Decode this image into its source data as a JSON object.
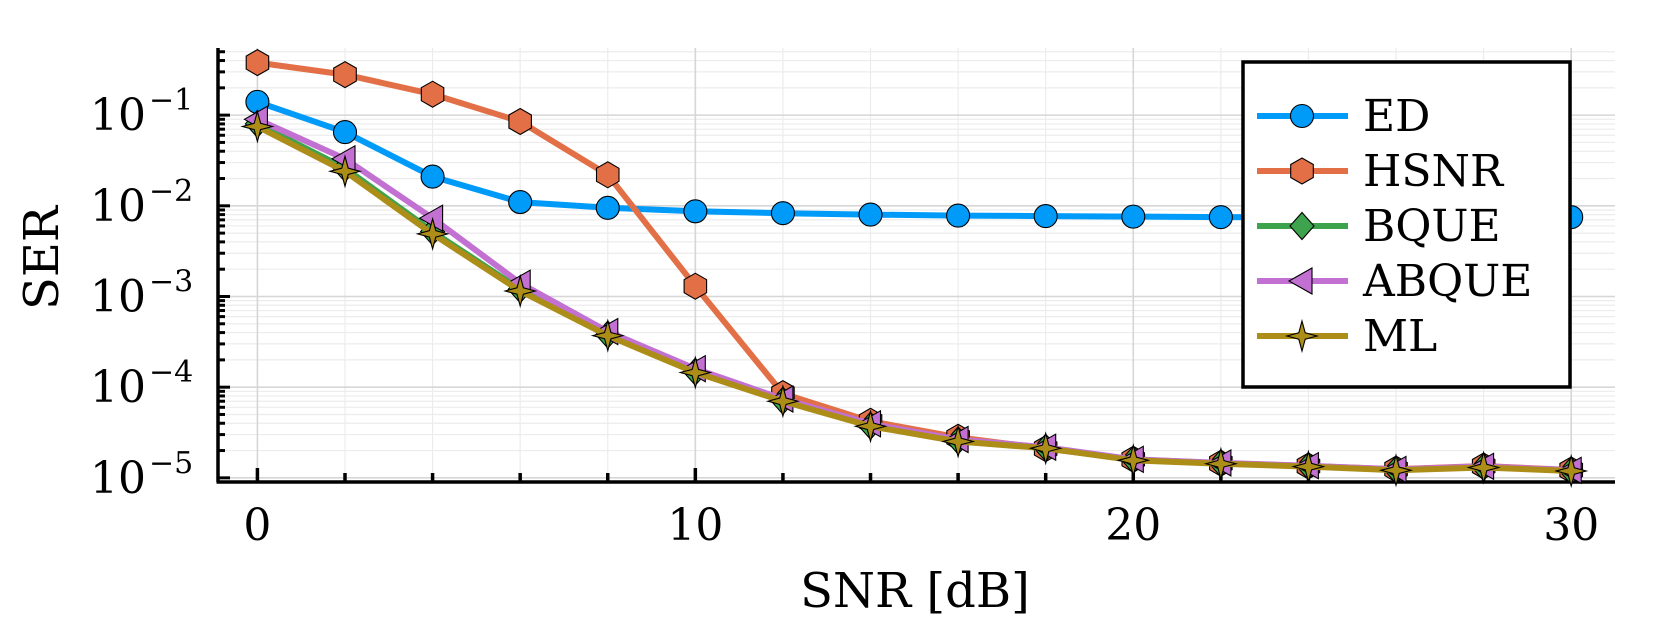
{
  "chart_data": {
    "type": "line",
    "xlabel": "SNR [dB]",
    "ylabel": "SER",
    "xlim": [
      -0.9,
      31.0
    ],
    "ylim": [
      9e-06,
      0.55
    ],
    "yscale": "log",
    "grid": true,
    "legend_position": "top-right",
    "xticks": [
      {
        "value": 0,
        "label": "0"
      },
      {
        "value": 10,
        "label": "10"
      },
      {
        "value": 20,
        "label": "20"
      },
      {
        "value": 30,
        "label": "30"
      }
    ],
    "yticks": [
      {
        "value": 0.1,
        "base": "10",
        "exp": "−1"
      },
      {
        "value": 0.01,
        "base": "10",
        "exp": "−2"
      },
      {
        "value": 0.001,
        "base": "10",
        "exp": "−3"
      },
      {
        "value": 0.0001,
        "base": "10",
        "exp": "−4"
      },
      {
        "value": 1e-05,
        "base": "10",
        "exp": "−5"
      }
    ],
    "x": [
      0,
      2,
      4,
      6,
      8,
      10,
      12,
      14,
      16,
      18,
      20,
      22,
      24,
      26,
      28,
      30
    ],
    "series": [
      {
        "name": "ED",
        "color": "#009af9",
        "marker": "circle",
        "values": [
          0.14,
          0.065,
          0.021,
          0.011,
          0.0095,
          0.0087,
          0.0083,
          0.008,
          0.0078,
          0.0077,
          0.0076,
          0.0075,
          0.0075,
          0.0075,
          0.0075,
          0.0075
        ]
      },
      {
        "name": "HSNR",
        "color": "#e26f46",
        "marker": "hexagon",
        "values": [
          0.38,
          0.28,
          0.17,
          0.085,
          0.022,
          0.0013,
          8.5e-05,
          4.2e-05,
          2.8e-05,
          2.1e-05,
          1.6e-05,
          1.45e-05,
          1.35e-05,
          1.25e-05,
          1.35e-05,
          1.22e-05
        ]
      },
      {
        "name": "BQUE",
        "color": "#3da44d",
        "marker": "diamond",
        "values": [
          0.08,
          0.026,
          0.0052,
          0.0012,
          0.00038,
          0.000148,
          7.1e-05,
          3.75e-05,
          2.58e-05,
          2.15e-05,
          1.58e-05,
          1.45e-05,
          1.35e-05,
          1.23e-05,
          1.32e-05,
          1.2e-05
        ]
      },
      {
        "name": "ABQUE",
        "color": "#c271d2",
        "marker": "triangle-left",
        "values": [
          0.09,
          0.033,
          0.0073,
          0.0014,
          0.00041,
          0.00016,
          7.4e-05,
          3.95e-05,
          2.65e-05,
          2.18e-05,
          1.6e-05,
          1.46e-05,
          1.36e-05,
          1.24e-05,
          1.34e-05,
          1.21e-05
        ]
      },
      {
        "name": "ML",
        "color": "#ac8d18",
        "marker": "star",
        "values": [
          0.075,
          0.024,
          0.0049,
          0.00115,
          0.00037,
          0.000145,
          7e-05,
          3.7e-05,
          2.52e-05,
          2.12e-05,
          1.56e-05,
          1.43e-05,
          1.33e-05,
          1.21e-05,
          1.3e-05,
          1.19e-05
        ]
      }
    ]
  }
}
